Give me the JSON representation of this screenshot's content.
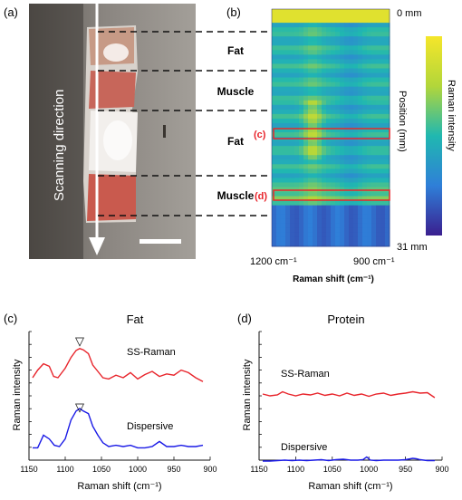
{
  "panels": {
    "a": "(a)",
    "b": "(b)",
    "c": "(c)",
    "d": "(d)"
  },
  "photo": {
    "arrow_label": "Scanning direction"
  },
  "regions": [
    {
      "label": "Fat"
    },
    {
      "label": "Muscle"
    },
    {
      "label": "Fat"
    },
    {
      "label": "Muscle"
    }
  ],
  "map": {
    "top_label": "0 mm",
    "bottom_label": "31 mm",
    "x_tick_left": "1200 cm⁻¹",
    "x_tick_right": "900 cm⁻¹",
    "xlabel": "Raman shift (cm⁻¹)",
    "position_label": "Position (mm)",
    "colorbar_label": "Raman intensity",
    "marker_c": "(c)",
    "marker_d": "(d)",
    "colors": {
      "low": "#3a1f8f",
      "mid": "#1fb3c2",
      "high": "#f5e62a",
      "marker": "#e8242b"
    }
  },
  "chart_data": [
    {
      "type": "line",
      "title": "Fat",
      "xlabel": "Raman shift (cm⁻¹)",
      "ylabel": "Raman intensity",
      "xlim": [
        1150,
        900
      ],
      "x_ticks": [
        "1150",
        "1100",
        "1050",
        "1000",
        "950",
        "900"
      ],
      "annotations": [
        "▽",
        "▽"
      ],
      "series": [
        {
          "name": "SS-Raman",
          "color": "#e8242b",
          "x": [
            1145,
            1138,
            1130,
            1122,
            1116,
            1110,
            1100,
            1092,
            1085,
            1080,
            1075,
            1068,
            1062,
            1055,
            1048,
            1040,
            1030,
            1020,
            1010,
            1000,
            990,
            980,
            970,
            960,
            950,
            940,
            930,
            920,
            910
          ],
          "y": [
            0.3,
            0.42,
            0.52,
            0.48,
            0.32,
            0.3,
            0.45,
            0.62,
            0.73,
            0.76,
            0.74,
            0.68,
            0.5,
            0.4,
            0.3,
            0.28,
            0.34,
            0.3,
            0.38,
            0.28,
            0.35,
            0.4,
            0.32,
            0.36,
            0.34,
            0.42,
            0.38,
            0.3,
            0.24
          ]
        },
        {
          "name": "Dispersive",
          "color": "#1a1ae6",
          "x": [
            1145,
            1138,
            1130,
            1122,
            1115,
            1108,
            1100,
            1092,
            1085,
            1080,
            1075,
            1068,
            1062,
            1055,
            1048,
            1040,
            1030,
            1020,
            1010,
            1000,
            990,
            980,
            970,
            960,
            950,
            940,
            930,
            920,
            910
          ],
          "y": [
            0.08,
            0.08,
            0.28,
            0.22,
            0.12,
            0.1,
            0.22,
            0.52,
            0.66,
            0.7,
            0.66,
            0.62,
            0.42,
            0.28,
            0.16,
            0.1,
            0.12,
            0.1,
            0.12,
            0.08,
            0.08,
            0.1,
            0.18,
            0.1,
            0.1,
            0.12,
            0.1,
            0.1,
            0.12
          ]
        }
      ]
    },
    {
      "type": "line",
      "title": "Protein",
      "xlabel": "Raman shift (cm⁻¹)",
      "ylabel": "Raman intensity",
      "xlim": [
        1150,
        900
      ],
      "x_ticks": [
        "1150",
        "1100",
        "1050",
        "1000",
        "950",
        "900"
      ],
      "series": [
        {
          "name": "SS-Raman",
          "color": "#e8242b",
          "x": [
            1145,
            1135,
            1125,
            1118,
            1110,
            1100,
            1090,
            1080,
            1070,
            1060,
            1050,
            1040,
            1030,
            1020,
            1010,
            1000,
            990,
            980,
            970,
            960,
            950,
            940,
            930,
            920,
            910
          ],
          "y": [
            0.5,
            0.46,
            0.48,
            0.55,
            0.5,
            0.46,
            0.5,
            0.48,
            0.52,
            0.47,
            0.5,
            0.46,
            0.52,
            0.47,
            0.5,
            0.45,
            0.5,
            0.52,
            0.47,
            0.5,
            0.52,
            0.55,
            0.52,
            0.53,
            0.42
          ]
        },
        {
          "name": "Dispersive",
          "color": "#1a1ae6",
          "x": [
            1145,
            1135,
            1125,
            1115,
            1105,
            1095,
            1085,
            1075,
            1065,
            1055,
            1045,
            1035,
            1025,
            1015,
            1008,
            1003,
            998,
            990,
            980,
            970,
            960,
            950,
            940,
            935,
            930,
            920,
            910
          ],
          "y": [
            0.02,
            0.02,
            0.03,
            0.04,
            0.03,
            0.04,
            0.03,
            0.04,
            0.05,
            0.03,
            0.05,
            0.06,
            0.04,
            0.04,
            0.05,
            0.11,
            0.04,
            0.03,
            0.04,
            0.04,
            0.04,
            0.05,
            0.08,
            0.07,
            0.05,
            0.03,
            0.03
          ]
        }
      ]
    }
  ]
}
